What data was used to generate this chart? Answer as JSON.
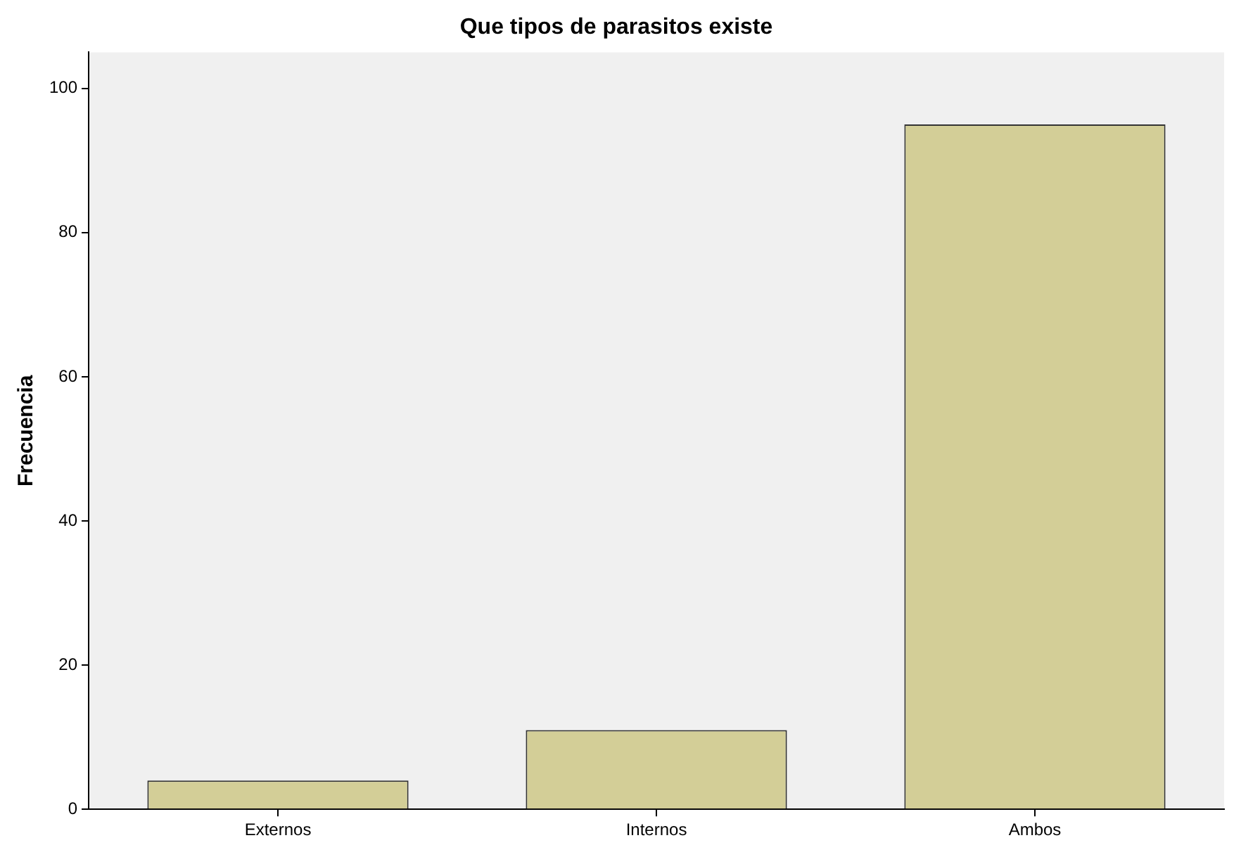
{
  "chart_data": {
    "type": "bar",
    "title": "Que tipos de parasitos existe",
    "ylabel": "Frecuencia",
    "categories": [
      "Externos",
      "Internos",
      "Ambos"
    ],
    "values": [
      4,
      11,
      95
    ],
    "color": "#d3ce97",
    "ylim": [
      0,
      105
    ],
    "yticks": [
      0,
      20,
      40,
      60,
      80,
      100
    ],
    "grid": false,
    "legend": false
  }
}
